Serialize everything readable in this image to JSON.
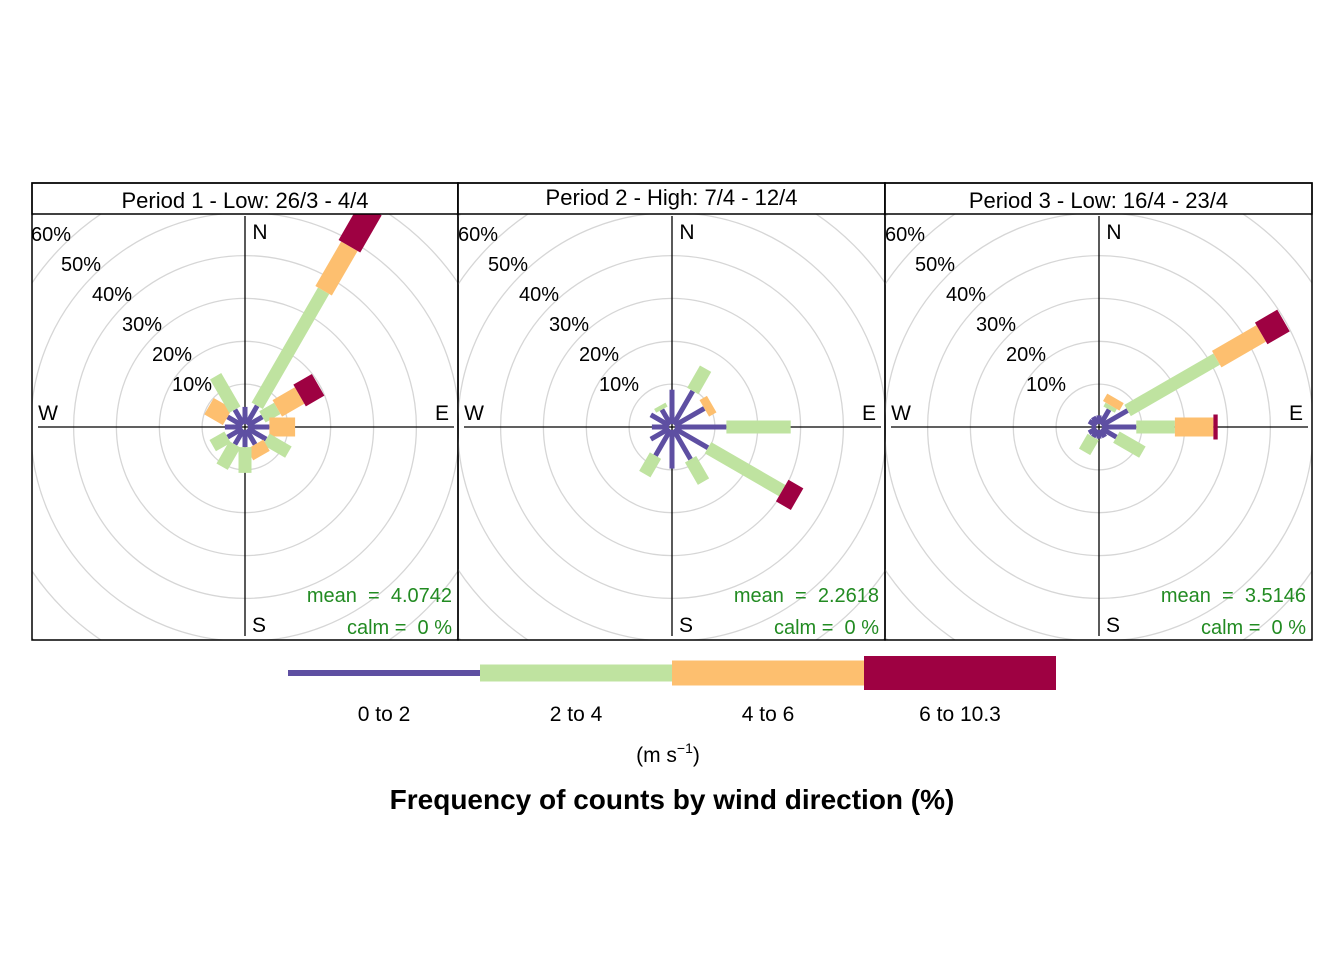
{
  "chart_data": {
    "type": "windrose",
    "title": "Frequency of counts by wind direction (%)",
    "grid": true,
    "radial_ticks": [
      "10%",
      "20%",
      "30%",
      "40%",
      "50%",
      "60%"
    ],
    "rmax": 60,
    "directions": [
      0,
      30,
      60,
      90,
      120,
      150,
      180,
      210,
      240,
      270,
      300,
      330
    ],
    "compass": [
      "N",
      "E",
      "S",
      "W"
    ],
    "legend": {
      "placement": "bottom",
      "units": "(m s",
      "units_exponent": "−1",
      "units_close": ")",
      "bins": [
        {
          "label": "0 to 2",
          "color": "#5E4FA2"
        },
        {
          "label": "2 to 4",
          "color": "#BFE3A0"
        },
        {
          "label": "4 to 6",
          "color": "#FDBF6F"
        },
        {
          "label": "6 to 10.3",
          "color": "#9E0142"
        }
      ]
    },
    "panels": [
      {
        "title": "Period 1 - Low: 26/3 - 4/4",
        "mean_label": "mean  =  4.0742",
        "calm_label": "calm =  0 %",
        "series": [
          {
            "name": "0 to 2",
            "values": [
              4,
              5,
              4,
              5,
              5,
              4,
              4,
              4,
              4,
              4,
              4,
              4
            ]
          },
          {
            "name": "2 to 4",
            "values": [
              0,
              31,
              4,
              0,
              6,
              0,
              6,
              6,
              4,
              0,
              0,
              9
            ]
          },
          {
            "name": "4 to 6",
            "values": [
              0,
              12,
              6,
              6,
              0,
              3,
              0,
              0,
              0,
              0,
              5,
              0
            ]
          },
          {
            "name": "6 to 10.3",
            "values": [
              0,
              10,
              5,
              0,
              0,
              0,
              0,
              0,
              0,
              0,
              0,
              0
            ]
          }
        ]
      },
      {
        "title": "Period 2 - High: 7/4 - 12/4",
        "mean_label": "mean  =  2.2618",
        "calm_label": "calm =  0 %",
        "series": [
          {
            "name": "0 to 2",
            "values": [
              8,
              9,
              8,
              12,
              9,
              8,
              9,
              7,
              5,
              4,
              5,
              4
            ]
          },
          {
            "name": "2 to 4",
            "values": [
              0,
              6,
              0,
              15,
              20,
              6,
              0,
              5,
              0,
              0,
              0,
              1
            ]
          },
          {
            "name": "4 to 6",
            "values": [
              0,
              0,
              2,
              0,
              0,
              0,
              0,
              0,
              0,
              0,
              0,
              0
            ]
          },
          {
            "name": "6 to 10.3",
            "values": [
              0,
              0,
              0,
              0,
              4,
              0,
              0,
              0,
              0,
              0,
              0,
              0
            ]
          }
        ]
      },
      {
        "title": "Period 3 - Low: 16/4 - 23/4",
        "mean_label": "mean  =  3.5146",
        "calm_label": "calm =  0 %",
        "series": [
          {
            "name": "0 to 2",
            "values": [
              2,
              4,
              7,
              8,
              4,
              2,
              2,
              2,
              2,
              1,
              2,
              2
            ]
          },
          {
            "name": "2 to 4",
            "values": [
              0,
              1,
              24,
              9,
              7,
              0,
              0,
              4,
              0,
              0,
              0,
              0
            ]
          },
          {
            "name": "4 to 6",
            "values": [
              0,
              2,
              12,
              9,
              0,
              0,
              0,
              0,
              0,
              0,
              0,
              0
            ]
          },
          {
            "name": "6 to 10.3",
            "values": [
              0,
              0,
              6,
              1,
              0,
              0,
              0,
              0,
              0,
              0,
              0,
              0
            ]
          }
        ]
      }
    ]
  }
}
